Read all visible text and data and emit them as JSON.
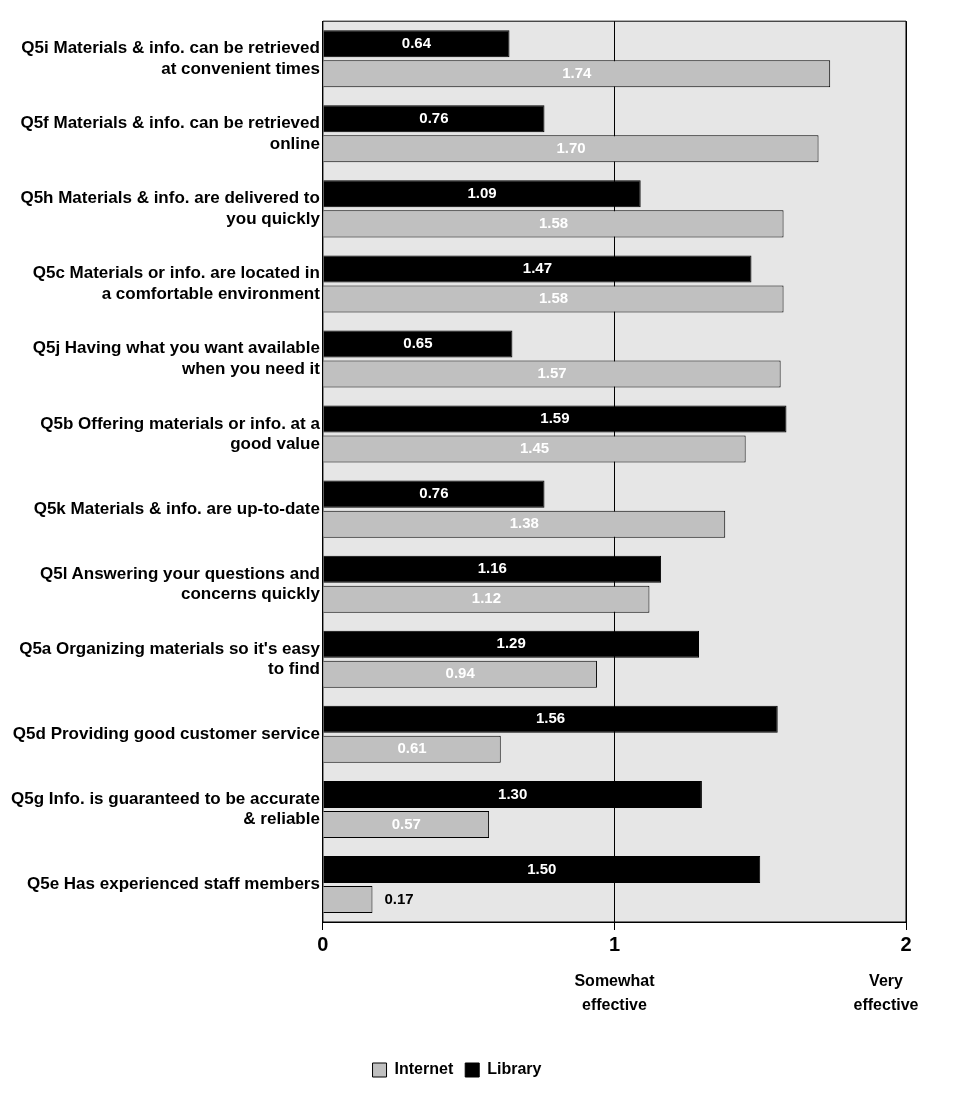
{
  "chart_data": {
    "type": "bar",
    "orientation": "horizontal",
    "categories": [
      "Q5i Materials & info. can be retrieved at convenient times",
      "Q5f Materials & info. can be retrieved online",
      "Q5h Materials & info. are delivered to you quickly",
      "Q5c Materials or info. are located in a comfortable environment",
      "Q5j Having what you want available when you need it",
      "Q5b Offering materials or info. at a good value",
      "Q5k Materials & info. are up-to-date",
      "Q5l Answering your questions and concerns quickly",
      "Q5a Organizing materials so it's easy to find",
      "Q5d Providing good customer service",
      "Q5g Info. is guaranteed to be accurate & reliable",
      "Q5e Has experienced staff members"
    ],
    "series": [
      {
        "name": "Library",
        "color": "#000000",
        "values": [
          0.64,
          0.76,
          1.09,
          1.47,
          0.65,
          1.59,
          0.76,
          1.16,
          1.29,
          1.56,
          1.3,
          1.5
        ],
        "value_labels": [
          "0.64",
          "0.76",
          "1.09",
          "1.47",
          "0.65",
          "1.59",
          "0.76",
          "1.16",
          "1.29",
          "1.56",
          "1.30",
          "1.50"
        ]
      },
      {
        "name": "Internet",
        "color": "#c0c0c0",
        "values": [
          1.74,
          1.7,
          1.58,
          1.58,
          1.57,
          1.45,
          1.38,
          1.12,
          0.94,
          0.61,
          0.57,
          0.17
        ],
        "value_labels": [
          "1.74",
          "1.70",
          "1.58",
          "1.58",
          "1.57",
          "1.45",
          "1.38",
          "1.12",
          "0.94",
          "0.61",
          "0.57",
          "0.17"
        ]
      }
    ],
    "xlim": [
      0,
      2
    ],
    "xticks": [
      0,
      1,
      2
    ],
    "grid": "x",
    "legend": "bottom",
    "annotations": [
      "Somewhat effective",
      "Very effective"
    ]
  }
}
